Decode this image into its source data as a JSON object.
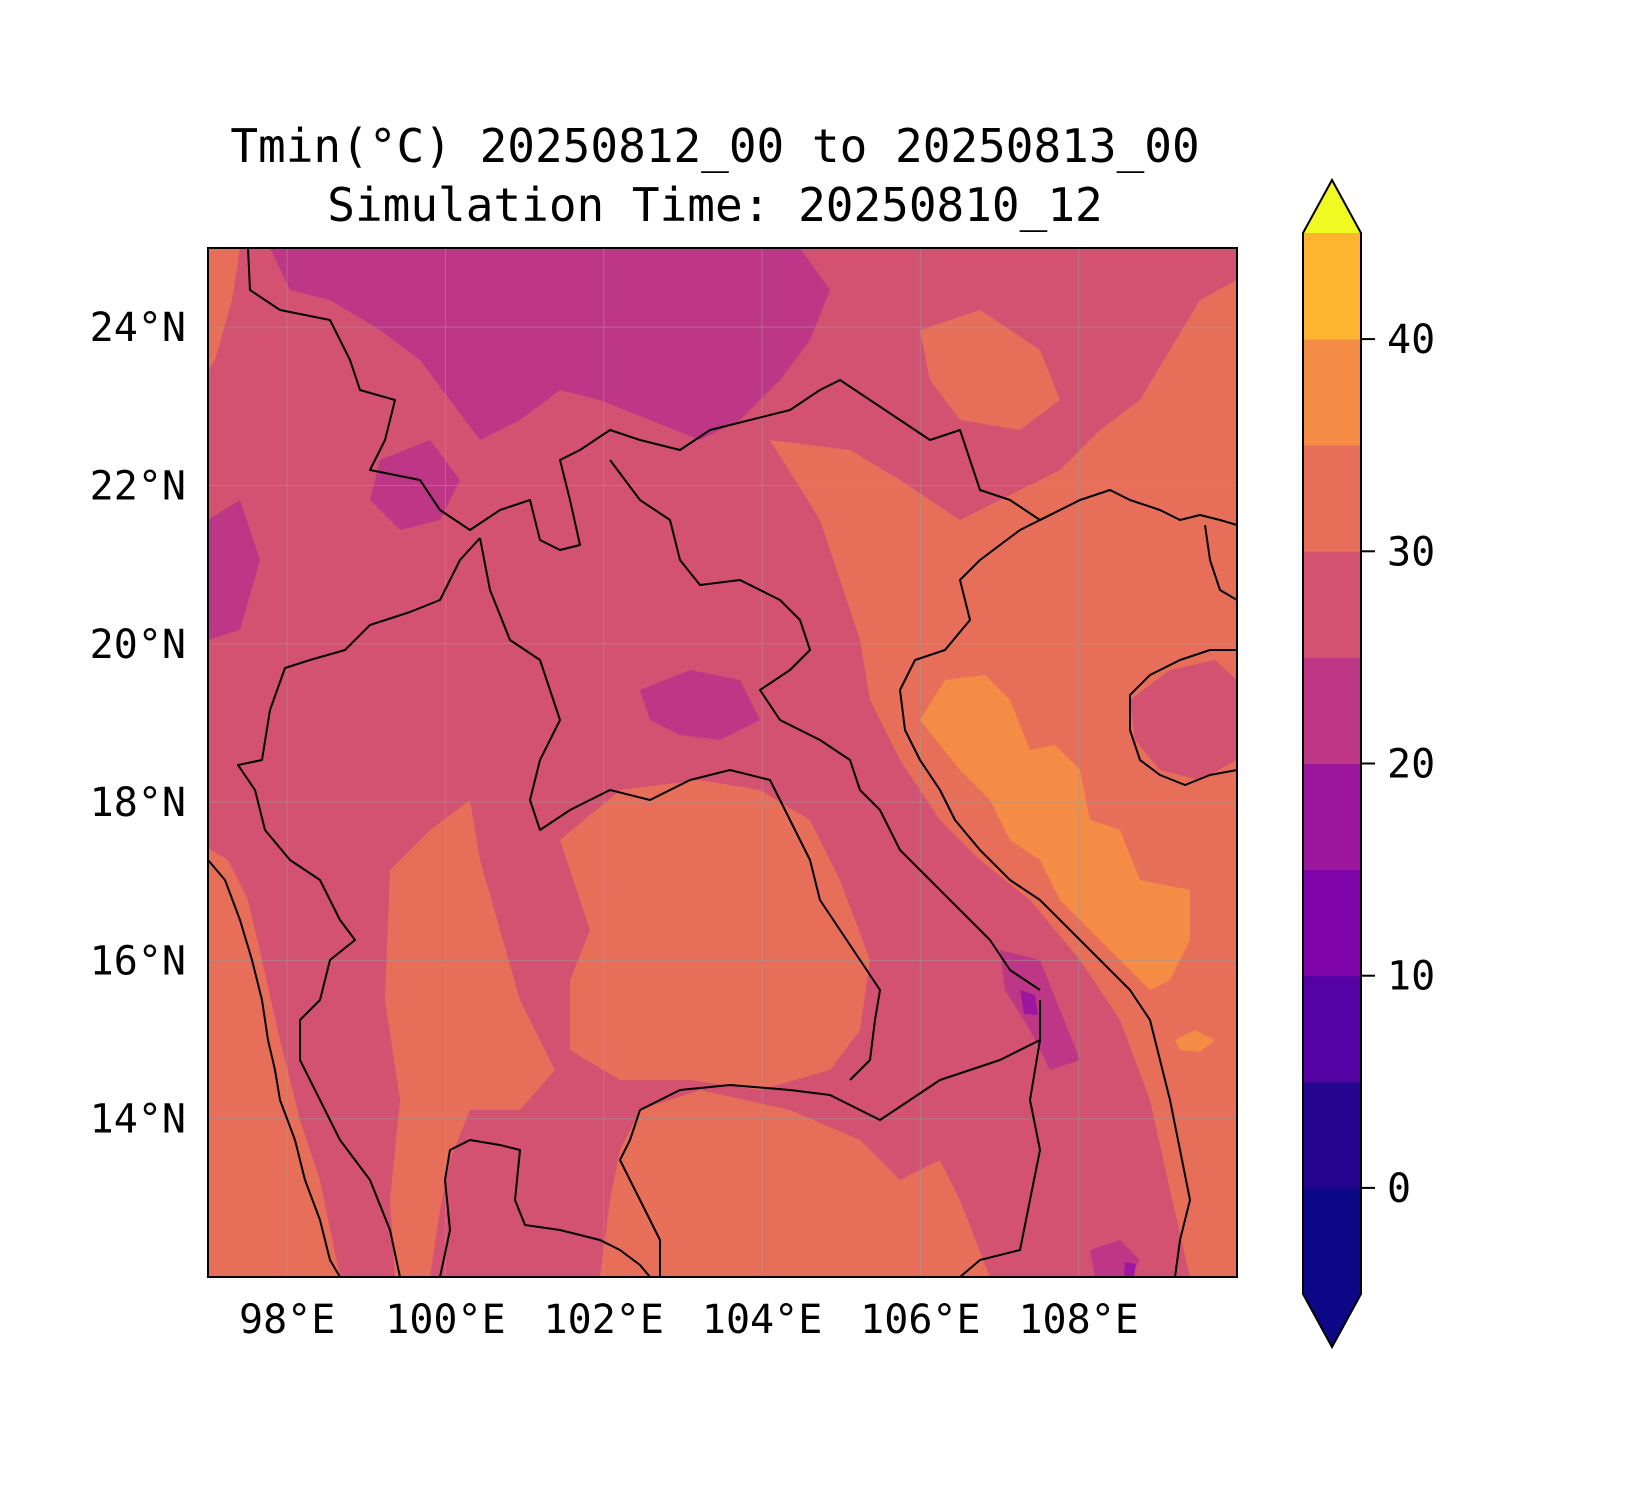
{
  "title": {
    "line1": "Tmin(°C) 20250812_00 to 20250813_00",
    "line2": "Simulation Time: 20250810_12"
  },
  "map": {
    "lon_range": [
      97.0,
      110.0
    ],
    "lat_range": [
      12.0,
      25.0
    ],
    "gridlines": true,
    "x_ticks": [
      {
        "value": 98,
        "label": "98°E"
      },
      {
        "value": 100,
        "label": "100°E"
      },
      {
        "value": 102,
        "label": "102°E"
      },
      {
        "value": 104,
        "label": "104°E"
      },
      {
        "value": 106,
        "label": "106°E"
      },
      {
        "value": 108,
        "label": "108°E"
      }
    ],
    "y_ticks": [
      {
        "value": 14,
        "label": "14°N"
      },
      {
        "value": 16,
        "label": "16°N"
      },
      {
        "value": 18,
        "label": "18°N"
      },
      {
        "value": 20,
        "label": "20°N"
      },
      {
        "value": 22,
        "label": "22°N"
      },
      {
        "value": 24,
        "label": "24°N"
      }
    ]
  },
  "colors": {
    "t15_20": "#bd3786",
    "t20_25": "#d35171",
    "t25_30": "#e76f5a",
    "t30_35": "#f58c46",
    "t10_15": "#9c179e",
    "t5_10": "#7e03a8",
    "coast": "#000000",
    "grid": "#9a9a9a"
  },
  "colorbar": {
    "min": -5,
    "max": 45,
    "extend": "both",
    "levels": [
      -5,
      0,
      5,
      10,
      15,
      20,
      25,
      30,
      35,
      40,
      45
    ],
    "colors": [
      "#0d0887",
      "#260591",
      "#5402a3",
      "#7e03a8",
      "#9c179e",
      "#bd3786",
      "#d35171",
      "#e76f5a",
      "#f58c46",
      "#fdb42f",
      "#f5e626"
    ],
    "under_color": "#0d0887",
    "over_color": "#f0f921",
    "ticks": [
      {
        "value": 0,
        "label": "0"
      },
      {
        "value": 10,
        "label": "10"
      },
      {
        "value": 20,
        "label": "20"
      },
      {
        "value": 30,
        "label": "30"
      },
      {
        "value": 40,
        "label": "40"
      }
    ]
  }
}
